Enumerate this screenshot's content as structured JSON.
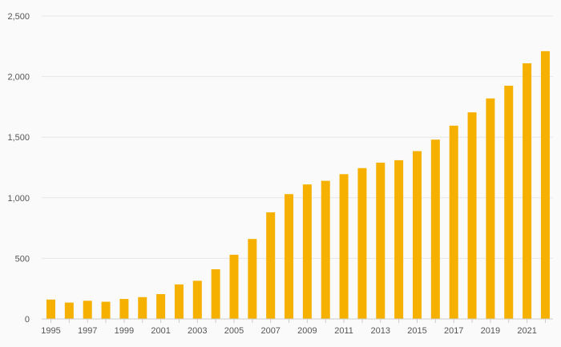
{
  "chart_data": {
    "type": "bar",
    "title": "",
    "xlabel": "",
    "ylabel": "",
    "ylim": [
      0,
      2500
    ],
    "y_ticks": [
      0,
      500,
      1000,
      1500,
      2000,
      2500
    ],
    "y_tick_labels": [
      "0",
      "500",
      "1,000",
      "1,500",
      "2,000",
      "2,500"
    ],
    "grid": true,
    "legend": "none",
    "bar_color": "#f5b000",
    "categories": [
      "1995",
      "1996",
      "1997",
      "1998",
      "1999",
      "2000",
      "2001",
      "2002",
      "2003",
      "2004",
      "2005",
      "2006",
      "2007",
      "2008",
      "2009",
      "2010",
      "2011",
      "2012",
      "2013",
      "2014",
      "2015",
      "2016",
      "2017",
      "2018",
      "2019",
      "2020",
      "2021",
      "2022"
    ],
    "x_tick_labels": [
      "1995",
      "1997",
      "1999",
      "2001",
      "2003",
      "2005",
      "2007",
      "2009",
      "2011",
      "2013",
      "2015",
      "2017",
      "2019",
      "2021"
    ],
    "values": [
      160,
      135,
      150,
      142,
      165,
      180,
      205,
      285,
      315,
      410,
      530,
      660,
      880,
      1030,
      1110,
      1140,
      1195,
      1245,
      1290,
      1310,
      1385,
      1480,
      1595,
      1705,
      1820,
      1925,
      2110,
      2210
    ]
  }
}
